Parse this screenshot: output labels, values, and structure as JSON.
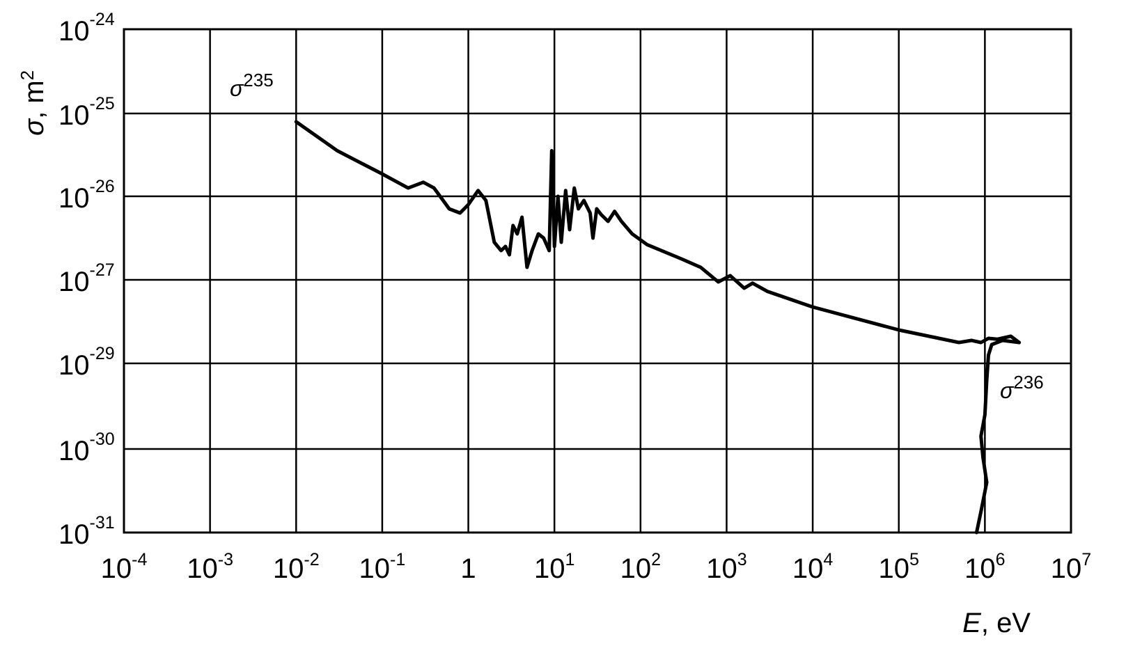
{
  "chart_data": {
    "type": "line",
    "xscale": "log",
    "xlabel": {
      "symbol": "E",
      "unit": "eV"
    },
    "ylabel": {
      "symbol": "σ",
      "unit": "m",
      "unit_exp": "2"
    },
    "x_ticks": [
      {
        "base": "10",
        "exp": "-4",
        "value": 0.0001
      },
      {
        "base": "10",
        "exp": "-3",
        "value": 0.001
      },
      {
        "base": "10",
        "exp": "-2",
        "value": 0.01
      },
      {
        "base": "10",
        "exp": "-1",
        "value": 0.1
      },
      {
        "base": "1",
        "exp": "",
        "value": 1
      },
      {
        "base": "10",
        "exp": "1",
        "value": 10
      },
      {
        "base": "10",
        "exp": "2",
        "value": 100
      },
      {
        "base": "10",
        "exp": "3",
        "value": 1000
      },
      {
        "base": "10",
        "exp": "4",
        "value": 10000
      },
      {
        "base": "10",
        "exp": "5",
        "value": 100000
      },
      {
        "base": "10",
        "exp": "6",
        "value": 1000000
      },
      {
        "base": "10",
        "exp": "7",
        "value": 10000000
      }
    ],
    "y_ticks": [
      {
        "base": "10",
        "exp": "-24"
      },
      {
        "base": "10",
        "exp": "-25"
      },
      {
        "base": "10",
        "exp": "-26"
      },
      {
        "base": "10",
        "exp": "-27"
      },
      {
        "base": "10",
        "exp": "-29"
      },
      {
        "base": "10",
        "exp": "-30"
      },
      {
        "base": "10",
        "exp": "-31"
      }
    ],
    "grid": true,
    "series": [
      {
        "name": "σ",
        "name_sup": "235",
        "points": [
          [
            0.01,
            -25.1
          ],
          [
            0.03,
            -25.45
          ],
          [
            0.1,
            -25.73
          ],
          [
            0.2,
            -25.9
          ],
          [
            0.3,
            -25.83
          ],
          [
            0.4,
            -25.9
          ],
          [
            0.6,
            -26.15
          ],
          [
            0.8,
            -26.2
          ],
          [
            1.0,
            -26.1
          ],
          [
            1.3,
            -25.93
          ],
          [
            1.6,
            -26.05
          ],
          [
            2.0,
            -26.55
          ],
          [
            2.4,
            -26.65
          ],
          [
            2.7,
            -26.6
          ],
          [
            3.0,
            -26.7
          ],
          [
            3.3,
            -26.35
          ],
          [
            3.7,
            -26.45
          ],
          [
            4.2,
            -26.25
          ],
          [
            4.8,
            -26.85
          ],
          [
            5.5,
            -26.65
          ],
          [
            6.5,
            -26.45
          ],
          [
            7.5,
            -26.5
          ],
          [
            8.7,
            -26.65
          ],
          [
            9.3,
            -25.45
          ],
          [
            10.0,
            -26.6
          ],
          [
            11.0,
            -26.0
          ],
          [
            12.0,
            -26.55
          ],
          [
            13.5,
            -25.93
          ],
          [
            15.0,
            -26.4
          ],
          [
            17.0,
            -25.9
          ],
          [
            19.0,
            -26.15
          ],
          [
            22.0,
            -26.05
          ],
          [
            26.0,
            -26.2
          ],
          [
            28.0,
            -26.5
          ],
          [
            31.0,
            -26.15
          ],
          [
            35.0,
            -26.22
          ],
          [
            42.0,
            -26.3
          ],
          [
            50.0,
            -26.18
          ],
          [
            60.0,
            -26.3
          ],
          [
            80.0,
            -26.45
          ],
          [
            120.0,
            -26.58
          ],
          [
            300.0,
            -26.75
          ],
          [
            500.0,
            -26.85
          ],
          [
            800.0,
            -27.05
          ],
          [
            1100.0,
            -26.95
          ],
          [
            1600.0,
            -27.2
          ],
          [
            2000.0,
            -27.08
          ],
          [
            3000.0,
            -27.28
          ],
          [
            10000.0,
            -27.65
          ],
          [
            100000.0,
            -28.2
          ],
          [
            500000.0,
            -28.5
          ],
          [
            700000.0,
            -28.45
          ],
          [
            900000.0,
            -28.5
          ],
          [
            1100000.0,
            -28.4
          ],
          [
            1400000.0,
            -28.42
          ],
          [
            2000000.0,
            -28.35
          ],
          [
            2500000.0,
            -28.5
          ]
        ]
      },
      {
        "name": "σ",
        "name_sup": "236",
        "points": [
          [
            2500000.0,
            -28.5
          ],
          [
            1600000.0,
            -28.45
          ],
          [
            1200000.0,
            -28.55
          ],
          [
            1100000.0,
            -28.8
          ],
          [
            1050000.0,
            -29.2
          ],
          [
            1000000.0,
            -29.6
          ],
          [
            900000.0,
            -29.85
          ],
          [
            950000.0,
            -30.1
          ],
          [
            1050000.0,
            -30.4
          ],
          [
            900000.0,
            -30.75
          ],
          [
            800000.0,
            -31.0
          ]
        ]
      }
    ]
  }
}
